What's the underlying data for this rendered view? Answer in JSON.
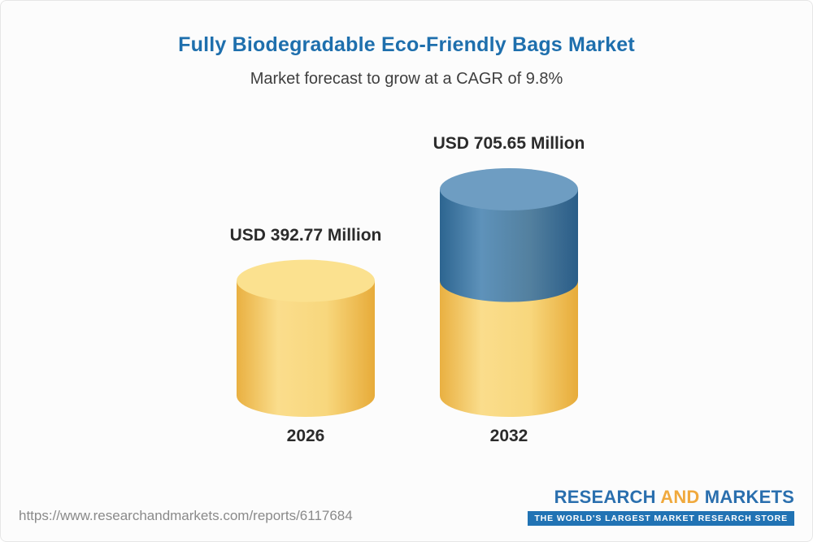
{
  "header": {
    "title": "Fully Biodegradable Eco-Friendly Bags Market",
    "subtitle": "Market forecast to grow at a CAGR of 9.8%"
  },
  "chart_data": {
    "type": "bar",
    "variant": "3d-cylinder",
    "title": "Fully Biodegradable Eco-Friendly Bags Market",
    "subtitle": "Market forecast to grow at a CAGR of 9.8%",
    "cagr_percent": 9.8,
    "unit": "USD Million",
    "categories": [
      "2026",
      "2032"
    ],
    "values": [
      392.77,
      705.65
    ],
    "value_labels": [
      "USD 392.77 Million",
      "USD 705.65 Million"
    ],
    "stacking_note": "2032 cylinder shows the 2026 level in yellow with the growth portion in blue on top",
    "axes": "none",
    "grid": false,
    "legend": false,
    "colors": {
      "base_cap": "#fbe18f",
      "growth_cap": "#6e9dc2",
      "base_body": "#f5c95f",
      "growth_body": "#3c76a3",
      "accent_title": "#1e6fad"
    }
  },
  "footer": {
    "url": "https://www.researchandmarkets.com/reports/6117684",
    "logo": {
      "word1": "RESEARCH ",
      "word2": "AND",
      "word3": " MARKETS",
      "tagline": "THE WORLD'S LARGEST MARKET RESEARCH STORE"
    }
  }
}
